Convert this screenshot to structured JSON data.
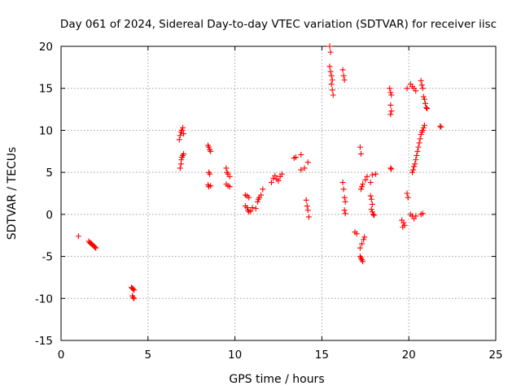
{
  "chart_data": {
    "type": "scatter",
    "title": "Day 061 of 2024, Sidereal Day-to-day VTEC variation (SDTVAR) for receiver iisc",
    "xlabel": "GPS time / hours",
    "ylabel": "SDTVAR / TECUs",
    "xlim": [
      0,
      25
    ],
    "ylim": [
      -15,
      20
    ],
    "xticks": [
      "0",
      "5",
      "10",
      "15",
      "20",
      "25"
    ],
    "yticks": [
      "-15",
      "-10",
      "-5",
      "0",
      "5",
      "10",
      "15",
      "20"
    ],
    "grid": true,
    "marker": "plus",
    "color": "#ff0000",
    "series": [
      {
        "name": "SDTVAR",
        "points": [
          [
            1.0,
            -2.6
          ],
          [
            1.6,
            -3.2
          ],
          [
            1.65,
            -3.35
          ],
          [
            1.7,
            -3.45
          ],
          [
            1.75,
            -3.5
          ],
          [
            1.8,
            -3.6
          ],
          [
            1.85,
            -3.7
          ],
          [
            1.9,
            -3.8
          ],
          [
            1.95,
            -3.9
          ],
          [
            2.0,
            -4.0
          ],
          [
            4.05,
            -8.7
          ],
          [
            4.1,
            -8.8
          ],
          [
            4.15,
            -8.9
          ],
          [
            4.2,
            -9.0
          ],
          [
            4.1,
            -9.7
          ],
          [
            4.15,
            -9.9
          ],
          [
            4.2,
            -10.0
          ],
          [
            6.8,
            8.9
          ],
          [
            6.85,
            9.4
          ],
          [
            6.9,
            9.8
          ],
          [
            6.95,
            10.0
          ],
          [
            7.0,
            10.3
          ],
          [
            7.05,
            9.6
          ],
          [
            6.85,
            5.5
          ],
          [
            6.9,
            6.0
          ],
          [
            6.92,
            6.5
          ],
          [
            6.95,
            6.8
          ],
          [
            7.0,
            7.0
          ],
          [
            7.05,
            7.2
          ],
          [
            8.45,
            8.2
          ],
          [
            8.5,
            8.0
          ],
          [
            8.55,
            7.7
          ],
          [
            8.6,
            7.5
          ],
          [
            8.5,
            5.0
          ],
          [
            8.55,
            4.8
          ],
          [
            8.45,
            3.5
          ],
          [
            8.5,
            3.3
          ],
          [
            8.6,
            3.4
          ],
          [
            9.5,
            5.5
          ],
          [
            9.55,
            5.0
          ],
          [
            9.6,
            4.8
          ],
          [
            9.7,
            4.5
          ],
          [
            9.5,
            3.6
          ],
          [
            9.6,
            3.4
          ],
          [
            9.7,
            3.3
          ],
          [
            10.6,
            2.3
          ],
          [
            10.7,
            2.2
          ],
          [
            10.8,
            2.0
          ],
          [
            10.6,
            1.0
          ],
          [
            10.7,
            0.8
          ],
          [
            10.75,
            0.5
          ],
          [
            10.8,
            0.3
          ],
          [
            10.9,
            0.4
          ],
          [
            11.0,
            0.8
          ],
          [
            11.2,
            0.7
          ],
          [
            11.3,
            1.5
          ],
          [
            11.35,
            1.8
          ],
          [
            11.4,
            2.0
          ],
          [
            11.5,
            2.3
          ],
          [
            11.6,
            3.0
          ],
          [
            12.1,
            3.8
          ],
          [
            12.2,
            4.3
          ],
          [
            12.3,
            4.6
          ],
          [
            12.4,
            4.2
          ],
          [
            12.5,
            4.0
          ],
          [
            12.6,
            4.5
          ],
          [
            12.7,
            4.8
          ],
          [
            13.4,
            6.7
          ],
          [
            13.5,
            6.8
          ],
          [
            13.8,
            7.1
          ],
          [
            13.8,
            5.3
          ],
          [
            14.0,
            5.5
          ],
          [
            14.2,
            6.2
          ],
          [
            14.1,
            1.7
          ],
          [
            14.15,
            1.0
          ],
          [
            14.2,
            0.5
          ],
          [
            14.25,
            -0.3
          ],
          [
            15.45,
            20.0
          ],
          [
            15.5,
            19.3
          ],
          [
            15.45,
            17.6
          ],
          [
            15.5,
            17.0
          ],
          [
            15.55,
            16.5
          ],
          [
            15.6,
            16.0
          ],
          [
            15.55,
            15.5
          ],
          [
            15.6,
            14.8
          ],
          [
            15.65,
            14.2
          ],
          [
            16.2,
            17.2
          ],
          [
            16.25,
            16.5
          ],
          [
            16.3,
            16.0
          ],
          [
            16.2,
            3.8
          ],
          [
            16.25,
            3.0
          ],
          [
            16.3,
            2.0
          ],
          [
            16.35,
            1.5
          ],
          [
            16.3,
            0.5
          ],
          [
            16.35,
            0.1
          ],
          [
            16.9,
            -2.1
          ],
          [
            17.0,
            -2.3
          ],
          [
            17.2,
            -5.0
          ],
          [
            17.25,
            -5.2
          ],
          [
            17.3,
            -5.4
          ],
          [
            17.35,
            -5.6
          ],
          [
            17.2,
            -4.0
          ],
          [
            17.3,
            -3.5
          ],
          [
            17.4,
            -3.0
          ],
          [
            17.45,
            -2.7
          ],
          [
            17.2,
            8.0
          ],
          [
            17.25,
            7.2
          ],
          [
            17.25,
            3.0
          ],
          [
            17.3,
            3.3
          ],
          [
            17.35,
            3.6
          ],
          [
            17.5,
            4.1
          ],
          [
            17.6,
            4.5
          ],
          [
            17.8,
            3.8
          ],
          [
            17.9,
            4.7
          ],
          [
            18.1,
            4.8
          ],
          [
            17.8,
            2.2
          ],
          [
            17.85,
            1.8
          ],
          [
            17.9,
            1.2
          ],
          [
            17.85,
            0.6
          ],
          [
            17.9,
            0.3
          ],
          [
            17.95,
            0.0
          ],
          [
            18.0,
            -0.1
          ],
          [
            18.9,
            15.0
          ],
          [
            18.95,
            14.5
          ],
          [
            19.0,
            14.2
          ],
          [
            18.95,
            13.0
          ],
          [
            19.0,
            12.3
          ],
          [
            18.95,
            11.9
          ],
          [
            18.95,
            5.5
          ],
          [
            19.0,
            5.4
          ],
          [
            19.6,
            -0.7
          ],
          [
            19.7,
            -1.0
          ],
          [
            19.75,
            -1.3
          ],
          [
            19.65,
            -1.5
          ],
          [
            19.9,
            15.0
          ],
          [
            19.9,
            2.5
          ],
          [
            19.95,
            2.0
          ],
          [
            20.1,
            15.5
          ],
          [
            20.2,
            15.2
          ],
          [
            20.3,
            15.0
          ],
          [
            20.4,
            14.7
          ],
          [
            20.1,
            0.0
          ],
          [
            20.2,
            -0.2
          ],
          [
            20.3,
            -0.5
          ],
          [
            20.4,
            -0.2
          ],
          [
            20.7,
            0.0
          ],
          [
            20.8,
            0.1
          ],
          [
            20.2,
            5.0
          ],
          [
            20.25,
            5.3
          ],
          [
            20.3,
            5.7
          ],
          [
            20.35,
            6.0
          ],
          [
            20.4,
            6.5
          ],
          [
            20.45,
            7.0
          ],
          [
            20.5,
            7.5
          ],
          [
            20.55,
            8.0
          ],
          [
            20.6,
            8.5
          ],
          [
            20.65,
            9.0
          ],
          [
            20.7,
            9.5
          ],
          [
            20.75,
            9.8
          ],
          [
            20.8,
            10.0
          ],
          [
            20.85,
            10.3
          ],
          [
            20.9,
            10.6
          ],
          [
            20.7,
            15.9
          ],
          [
            20.75,
            15.4
          ],
          [
            20.8,
            15.0
          ],
          [
            20.85,
            14.0
          ],
          [
            20.9,
            13.7
          ],
          [
            20.95,
            13.2
          ],
          [
            21.0,
            12.7
          ],
          [
            21.05,
            12.6
          ],
          [
            21.8,
            10.5
          ],
          [
            21.85,
            10.4
          ]
        ]
      }
    ]
  }
}
